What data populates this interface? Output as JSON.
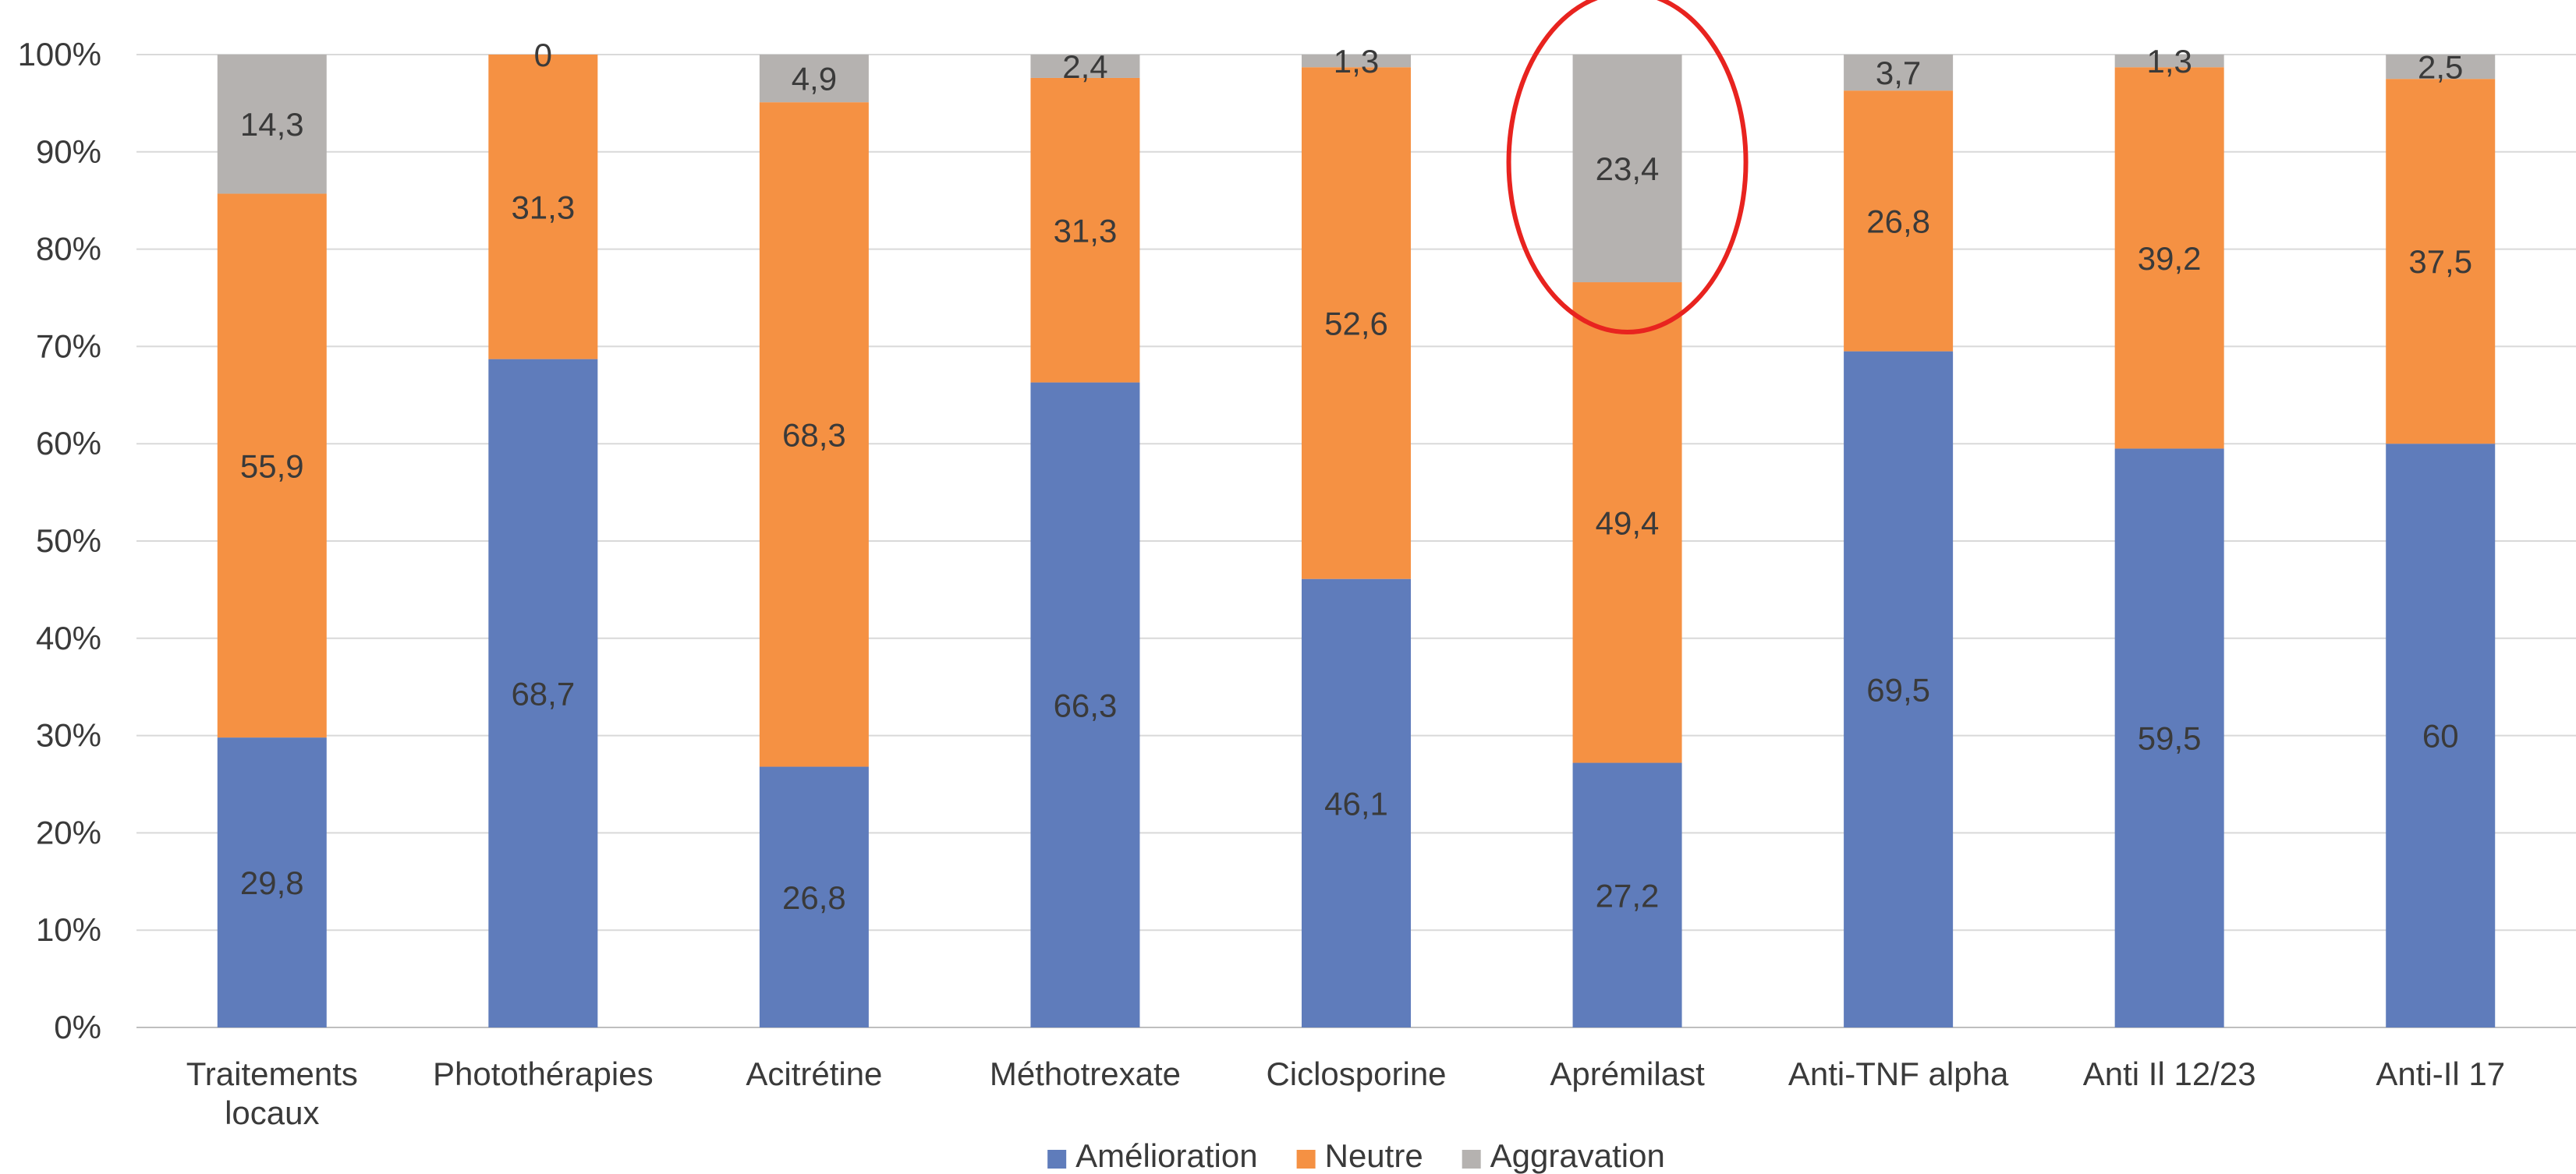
{
  "chart_data": {
    "type": "bar",
    "stacked": true,
    "percent_stacked": true,
    "categories": [
      [
        "Traitements",
        "locaux"
      ],
      [
        "Photothérapies"
      ],
      [
        "Acitrétine"
      ],
      [
        "Méthotrexate"
      ],
      [
        "Ciclosporine"
      ],
      [
        "Aprémilast"
      ],
      [
        "Anti-TNF alpha"
      ],
      [
        "Anti Il 12/23"
      ],
      [
        "Anti-Il 17"
      ]
    ],
    "series": [
      {
        "name": "Amélioration",
        "color": "#5f7cbb",
        "values": [
          29.8,
          68.7,
          26.8,
          66.3,
          46.1,
          27.2,
          69.5,
          59.5,
          60
        ],
        "labels": [
          "29,8",
          "68,7",
          "26,8",
          "66,3",
          "46,1",
          "27,2",
          "69,5",
          "59,5",
          "60"
        ]
      },
      {
        "name": "Neutre",
        "color": "#f59143",
        "values": [
          55.9,
          31.3,
          68.3,
          31.3,
          52.6,
          49.4,
          26.8,
          39.2,
          37.5
        ],
        "labels": [
          "55,9",
          "31,3",
          "68,3",
          "31,3",
          "52,6",
          "49,4",
          "26,8",
          "39,2",
          "37,5"
        ]
      },
      {
        "name": "Aggravation",
        "color": "#b5b2b0",
        "values": [
          14.3,
          0,
          4.9,
          2.4,
          1.3,
          23.4,
          3.7,
          1.3,
          2.5
        ],
        "labels": [
          "14,3",
          "0",
          "4,9",
          "2,4",
          "1,3",
          "23,4",
          "3,7",
          "1,3",
          "2,5"
        ]
      }
    ],
    "y_ticks": [
      "0%",
      "10%",
      "20%",
      "30%",
      "40%",
      "50%",
      "60%",
      "70%",
      "80%",
      "90%",
      "100%"
    ],
    "ylim": [
      0,
      100
    ],
    "grid": true,
    "legend_position": "bottom",
    "annotation": {
      "type": "ellipse",
      "target_category": "Aprémilast",
      "target_series": "Aggravation",
      "color": "#e8231f"
    }
  }
}
